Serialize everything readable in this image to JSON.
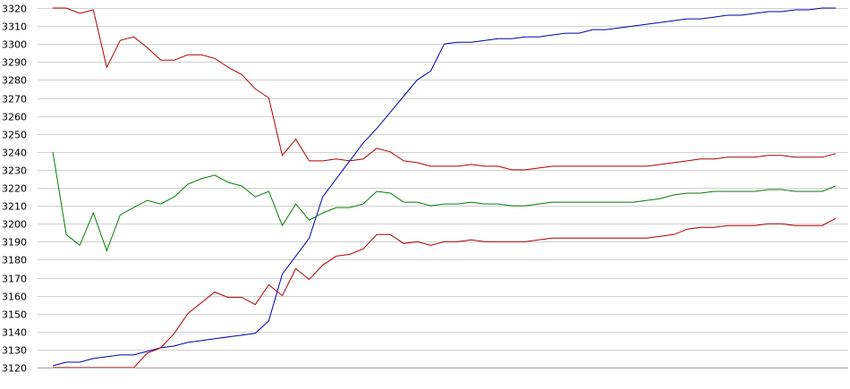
{
  "chart_data": {
    "type": "line",
    "ylim": [
      3120,
      3320
    ],
    "yticks": [
      3120,
      3130,
      3140,
      3150,
      3160,
      3170,
      3180,
      3190,
      3200,
      3210,
      3220,
      3230,
      3240,
      3250,
      3260,
      3270,
      3280,
      3290,
      3300,
      3310,
      3320
    ],
    "grid": true,
    "legend": "none",
    "x": [
      0,
      1,
      2,
      3,
      4,
      5,
      6,
      7,
      8,
      9,
      10,
      11,
      12,
      13,
      14,
      15,
      16,
      17,
      18,
      19,
      20,
      21,
      22,
      23,
      24,
      25,
      26,
      27,
      28,
      29,
      30,
      31,
      32,
      33,
      34,
      35,
      36,
      37,
      38,
      39,
      40,
      41,
      42,
      43,
      44,
      45,
      46,
      47,
      48,
      49,
      50,
      51,
      52,
      53,
      54,
      55,
      56,
      57,
      58
    ],
    "series": [
      {
        "color": "#b00000",
        "values": [
          3320,
          3320,
          3317,
          3319,
          3287,
          3302,
          3304,
          3298,
          3291,
          3291,
          3294,
          3294,
          3292,
          3287,
          3283,
          3275,
          3270,
          3238,
          3247,
          3235,
          3235,
          3236,
          3235,
          3236,
          3242,
          3240,
          3235,
          3234,
          3232,
          3232,
          3232,
          3233,
          3232,
          3232,
          3230,
          3230,
          3231,
          3232,
          3232,
          3232,
          3232,
          3232,
          3232,
          3232,
          3232,
          3233,
          3234,
          3235,
          3236,
          3236,
          3237,
          3237,
          3237,
          3238,
          3238,
          3237,
          3237,
          3237,
          3239
        ]
      },
      {
        "color": "#0000b0",
        "values": [
          3121,
          3123,
          3123,
          3125,
          3126,
          3127,
          3127,
          3129,
          3131,
          3132,
          3134,
          3135,
          3136,
          3137,
          3138,
          3139,
          3146,
          3172,
          3182,
          3192,
          3215,
          3225,
          3235,
          3245,
          3253,
          3262,
          3271,
          3280,
          3285,
          3300,
          3301,
          3301,
          3302,
          3303,
          3303,
          3304,
          3304,
          3305,
          3306,
          3306,
          3308,
          3308,
          3309,
          3310,
          3311,
          3312,
          3313,
          3314,
          3314,
          3315,
          3316,
          3316,
          3317,
          3318,
          3318,
          3319,
          3319,
          3320,
          3320
        ]
      },
      {
        "color": "#008000",
        "values": [
          3240,
          3194,
          3188,
          3206,
          3185,
          3205,
          3209,
          3213,
          3211,
          3215,
          3222,
          3225,
          3227,
          3223,
          3221,
          3215,
          3218,
          3199,
          3211,
          3202,
          3206,
          3209,
          3209,
          3211,
          3218,
          3217,
          3212,
          3212,
          3210,
          3211,
          3211,
          3212,
          3211,
          3211,
          3210,
          3210,
          3211,
          3212,
          3212,
          3212,
          3212,
          3212,
          3212,
          3212,
          3213,
          3214,
          3216,
          3217,
          3217,
          3218,
          3218,
          3218,
          3218,
          3219,
          3219,
          3218,
          3218,
          3218,
          3221
        ]
      },
      {
        "color": "#b00000",
        "values": [
          3120,
          3120,
          3120,
          3120,
          3120,
          3120,
          3120,
          3128,
          3131,
          3139,
          3150,
          3156,
          3162,
          3159,
          3159,
          3155,
          3166,
          3160,
          3175,
          3169,
          3177,
          3182,
          3183,
          3186,
          3194,
          3194,
          3189,
          3190,
          3188,
          3190,
          3190,
          3191,
          3190,
          3190,
          3190,
          3190,
          3191,
          3192,
          3192,
          3192,
          3192,
          3192,
          3192,
          3192,
          3192,
          3193,
          3194,
          3197,
          3198,
          3198,
          3199,
          3199,
          3199,
          3200,
          3200,
          3199,
          3199,
          3199,
          3203
        ]
      }
    ]
  }
}
